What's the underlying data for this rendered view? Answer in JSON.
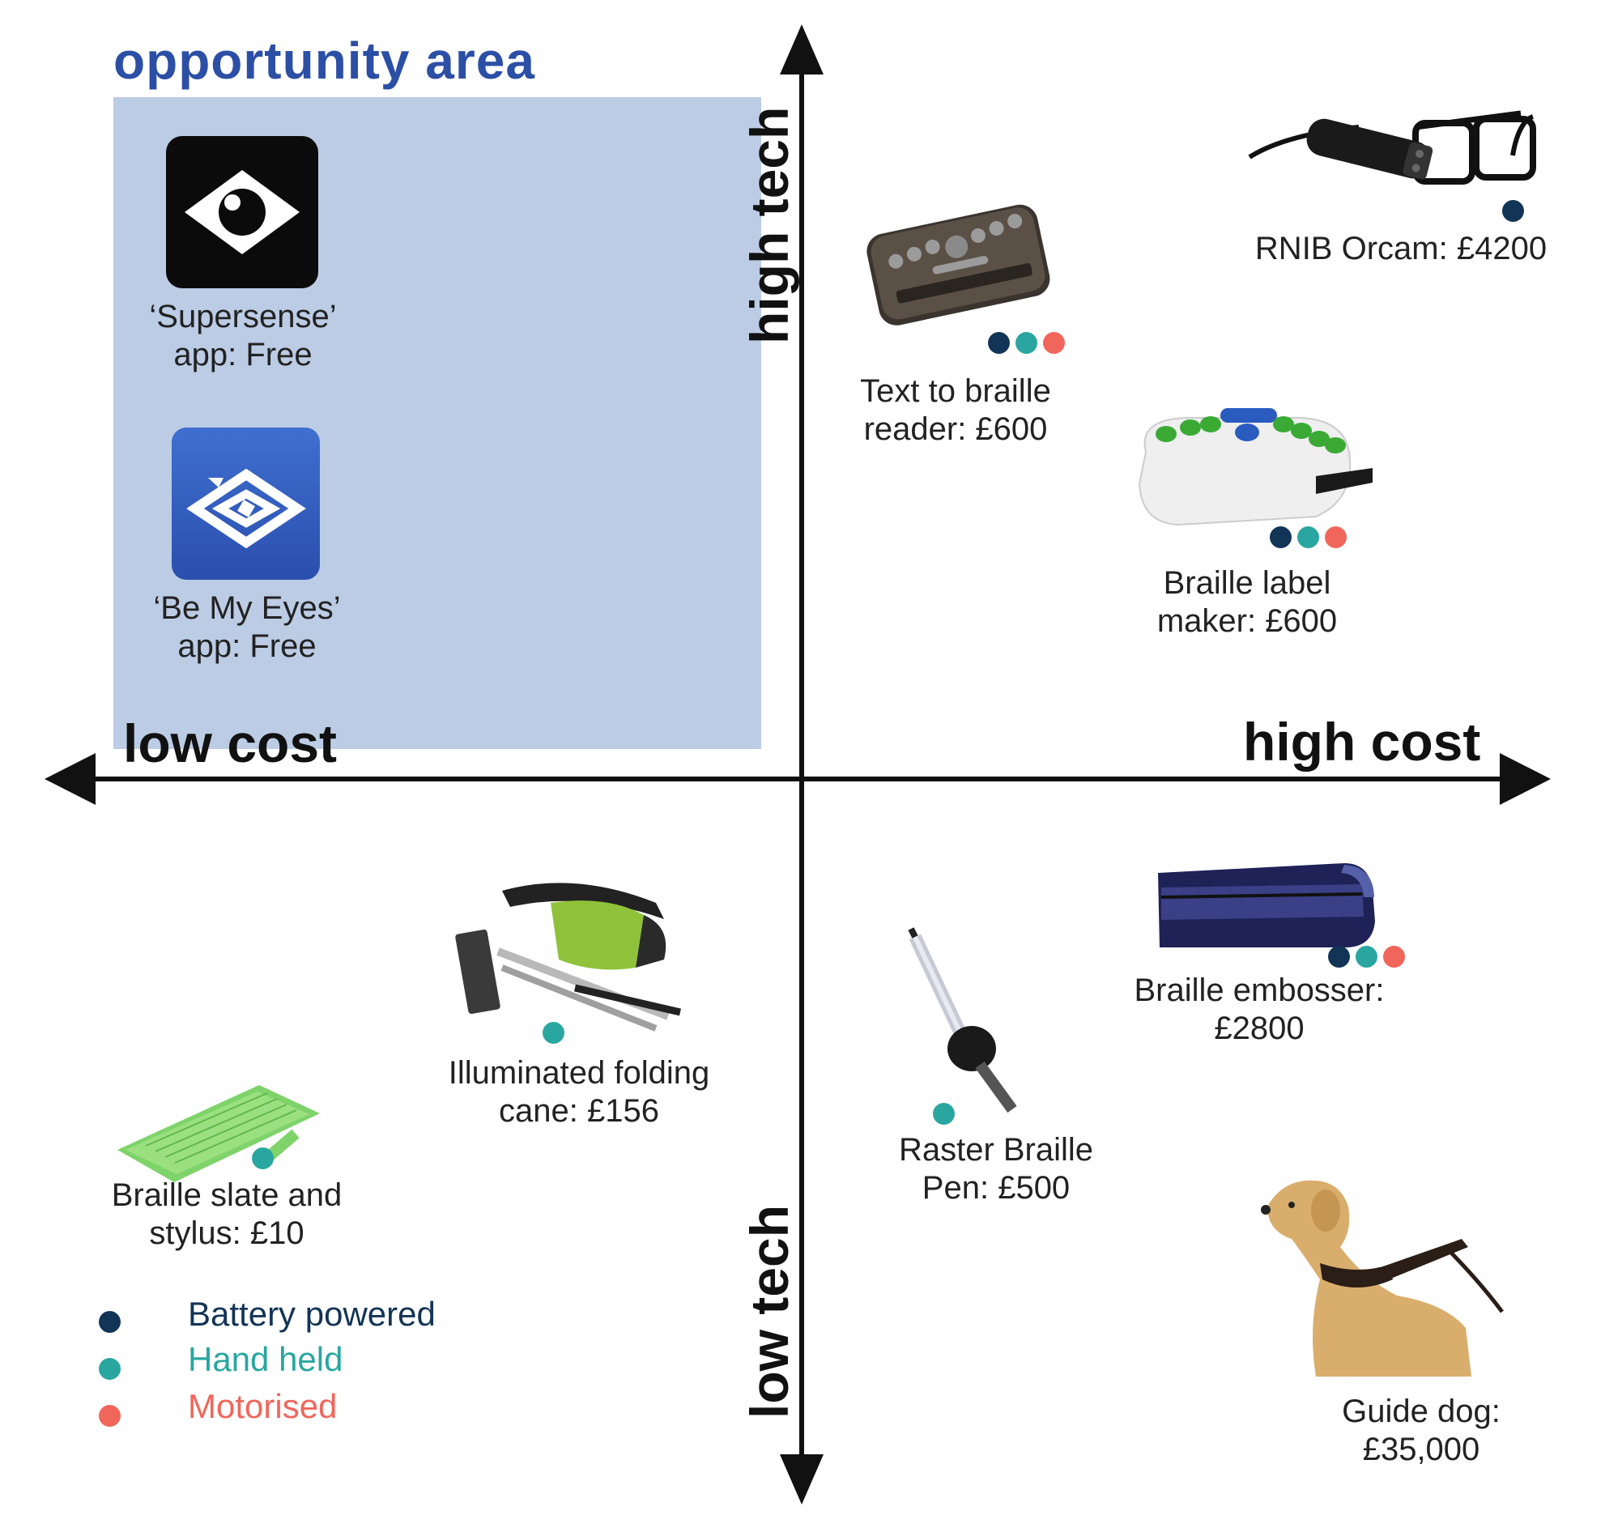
{
  "title": "opportunity area",
  "axes": {
    "high_tech": "high tech",
    "low_tech": "low tech",
    "low_cost": "low cost",
    "high_cost": "high cost"
  },
  "colors": {
    "battery": "#123456",
    "handheld": "#2aa6a0",
    "motorised": "#f0665b",
    "opportunity_fill": "#bccce5",
    "title": "#2c4fa6"
  },
  "items": {
    "supersense": {
      "line1": "‘Supersense’",
      "line2": "app: Free",
      "icon": "eye-app-icon"
    },
    "bemyeyes": {
      "line1": "‘Be My Eyes’",
      "line2": "app: Free",
      "icon": "be-my-eyes-app-icon"
    },
    "braille_reader": {
      "line1": "Text to braille",
      "line2": "reader: £600",
      "features": [
        "battery",
        "handheld",
        "motorised"
      ]
    },
    "orcam": {
      "line1": "RNIB Orcam: £4200",
      "features": [
        "battery"
      ]
    },
    "label_maker": {
      "line1": "Braille label",
      "line2": "maker: £600",
      "features": [
        "battery",
        "handheld",
        "motorised"
      ]
    },
    "cane": {
      "line1": "Illuminated folding",
      "line2": "cane: £156",
      "features": [
        "handheld"
      ]
    },
    "embosser": {
      "line1": "Braille embosser:",
      "line2": "£2800",
      "features": [
        "battery",
        "handheld",
        "motorised"
      ]
    },
    "slate": {
      "line1": "Braille slate and",
      "line2": "stylus: £10",
      "features": [
        "handheld"
      ]
    },
    "pen": {
      "line1": "Raster Braille",
      "line2": "Pen: £500",
      "features": [
        "handheld"
      ]
    },
    "dog": {
      "line1": "Guide dog:",
      "line2": "£35,000"
    }
  },
  "legend": {
    "battery": "Battery powered",
    "handheld": "Hand held",
    "motorised": "Motorised"
  }
}
